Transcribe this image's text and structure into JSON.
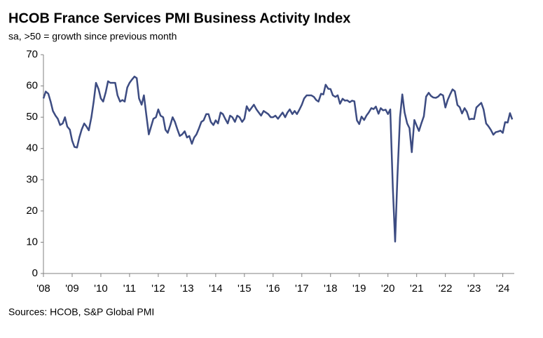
{
  "chart_data": {
    "type": "line",
    "title": "HCOB France Services PMI Business Activity Index",
    "subtitle": "sa, >50 = growth since previous month",
    "source": "Sources: HCOB, S&P Global PMI",
    "color": "#3d4c82",
    "x": [
      2008,
      2008.08,
      2008.17,
      2008.25,
      2008.33,
      2008.42,
      2008.5,
      2008.58,
      2008.67,
      2008.75,
      2008.83,
      2008.92,
      2009,
      2009.08,
      2009.17,
      2009.25,
      2009.33,
      2009.42,
      2009.5,
      2009.58,
      2009.67,
      2009.75,
      2009.83,
      2009.92,
      2010,
      2010.08,
      2010.17,
      2010.25,
      2010.33,
      2010.42,
      2010.5,
      2010.58,
      2010.67,
      2010.75,
      2010.83,
      2010.92,
      2011,
      2011.08,
      2011.17,
      2011.25,
      2011.33,
      2011.42,
      2011.5,
      2011.58,
      2011.67,
      2011.75,
      2011.83,
      2011.92,
      2012,
      2012.08,
      2012.17,
      2012.25,
      2012.33,
      2012.42,
      2012.5,
      2012.58,
      2012.67,
      2012.75,
      2012.83,
      2012.92,
      2013,
      2013.08,
      2013.17,
      2013.25,
      2013.33,
      2013.42,
      2013.5,
      2013.58,
      2013.67,
      2013.75,
      2013.83,
      2013.92,
      2014,
      2014.08,
      2014.17,
      2014.25,
      2014.33,
      2014.42,
      2014.5,
      2014.58,
      2014.67,
      2014.75,
      2014.83,
      2014.92,
      2015,
      2015.08,
      2015.17,
      2015.25,
      2015.33,
      2015.42,
      2015.5,
      2015.58,
      2015.67,
      2015.75,
      2015.83,
      2015.92,
      2016,
      2016.08,
      2016.17,
      2016.25,
      2016.33,
      2016.42,
      2016.5,
      2016.58,
      2016.67,
      2016.75,
      2016.83,
      2016.92,
      2017,
      2017.08,
      2017.17,
      2017.25,
      2017.33,
      2017.42,
      2017.5,
      2017.58,
      2017.67,
      2017.75,
      2017.83,
      2017.92,
      2018,
      2018.08,
      2018.17,
      2018.25,
      2018.33,
      2018.42,
      2018.5,
      2018.58,
      2018.67,
      2018.75,
      2018.83,
      2018.92,
      2019,
      2019.08,
      2019.17,
      2019.25,
      2019.33,
      2019.42,
      2019.5,
      2019.58,
      2019.67,
      2019.75,
      2019.83,
      2019.92,
      2020,
      2020.08,
      2020.17,
      2020.25,
      2020.33,
      2020.42,
      2020.5,
      2020.58,
      2020.67,
      2020.75,
      2020.83,
      2020.92,
      2021,
      2021.08,
      2021.17,
      2021.25,
      2021.33,
      2021.42,
      2021.5,
      2021.58,
      2021.67,
      2021.75,
      2021.83,
      2021.92,
      2022,
      2022.08,
      2022.17,
      2022.25,
      2022.33,
      2022.42,
      2022.5,
      2022.58,
      2022.67,
      2022.75,
      2022.83,
      2022.92,
      2023,
      2023.08,
      2023.17,
      2023.25,
      2023.33,
      2023.42,
      2023.5,
      2023.58,
      2023.67,
      2023.75,
      2023.83,
      2023.92,
      2024,
      2024.08,
      2024.17,
      2024.25,
      2024.33
    ],
    "values": [
      56,
      58.2,
      57.5,
      55,
      52,
      50.5,
      49.5,
      47.5,
      48,
      50,
      47,
      46,
      42.5,
      40.5,
      40.3,
      43.5,
      46,
      48,
      47,
      45.8,
      50,
      55,
      61,
      59,
      56,
      55,
      58,
      61.5,
      61,
      61,
      61,
      57,
      55,
      55.5,
      55,
      59.5,
      61,
      62,
      63,
      62.5,
      56,
      54,
      57,
      51,
      44.5,
      47,
      49.5,
      50,
      52.5,
      50.5,
      50,
      46,
      45,
      47.5,
      50,
      48.5,
      46,
      44,
      44.5,
      45.5,
      43.5,
      44,
      41.5,
      43.5,
      44.5,
      46.5,
      48.5,
      49,
      51,
      51,
      48.5,
      47.5,
      49,
      48,
      51.5,
      51,
      49.5,
      48,
      50.5,
      50,
      48.5,
      50.5,
      50,
      48.5,
      49.5,
      53.5,
      52,
      53,
      54,
      52.5,
      51.5,
      50.5,
      52,
      51.5,
      51,
      50,
      50,
      50.5,
      49.5,
      50.5,
      51.5,
      50,
      51.5,
      52.5,
      51,
      52,
      51,
      52.5,
      54,
      56,
      57,
      57,
      57,
      56.5,
      55.5,
      55,
      57.5,
      57.3,
      60.4,
      59.1,
      59,
      57,
      56.5,
      57,
      54.3,
      55.9,
      55.3,
      55.4,
      54.8,
      55.3,
      55.1,
      49,
      47.8,
      50.2,
      49.1,
      50.5,
      51.5,
      52.9,
      52.6,
      53.4,
      51.1,
      52.9,
      52.2,
      52.4,
      51,
      52.5,
      27.4,
      10.2,
      31,
      50,
      57.3,
      51.5,
      48,
      46.5,
      38.8,
      49.1,
      47.3,
      45.6,
      48.2,
      50.3,
      56.6,
      57.8,
      56.8,
      56.3,
      56.2,
      56.6,
      57.4,
      57,
      53.1,
      55.5,
      57.4,
      58.9,
      58.3,
      53.9,
      53.2,
      51.2,
      52.9,
      51.7,
      49.3,
      49.5,
      49.4,
      53.1,
      53.9,
      54.6,
      52.5,
      48,
      47.1,
      46,
      44.4,
      45.2,
      45.4,
      45.7,
      45,
      48.4,
      48.3,
      51.3,
      49.3
    ],
    "xlim": [
      2008,
      2024.4
    ],
    "xticks": [
      {
        "value": 2008,
        "label": "'08"
      },
      {
        "value": 2009,
        "label": "'09"
      },
      {
        "value": 2010,
        "label": "'10"
      },
      {
        "value": 2011,
        "label": "'11"
      },
      {
        "value": 2012,
        "label": "'12"
      },
      {
        "value": 2013,
        "label": "'13"
      },
      {
        "value": 2014,
        "label": "'14"
      },
      {
        "value": 2015,
        "label": "'15"
      },
      {
        "value": 2016,
        "label": "'16"
      },
      {
        "value": 2017,
        "label": "'17"
      },
      {
        "value": 2018,
        "label": "'18"
      },
      {
        "value": 2019,
        "label": "'19"
      },
      {
        "value": 2020,
        "label": "'20"
      },
      {
        "value": 2021,
        "label": "'21"
      },
      {
        "value": 2022,
        "label": "'22"
      },
      {
        "value": 2023,
        "label": "'23"
      },
      {
        "value": 2024,
        "label": "'24"
      }
    ],
    "ylim": [
      0,
      70
    ],
    "yticks": [
      0,
      10,
      20,
      30,
      40,
      50,
      60,
      70
    ],
    "grid": false
  }
}
